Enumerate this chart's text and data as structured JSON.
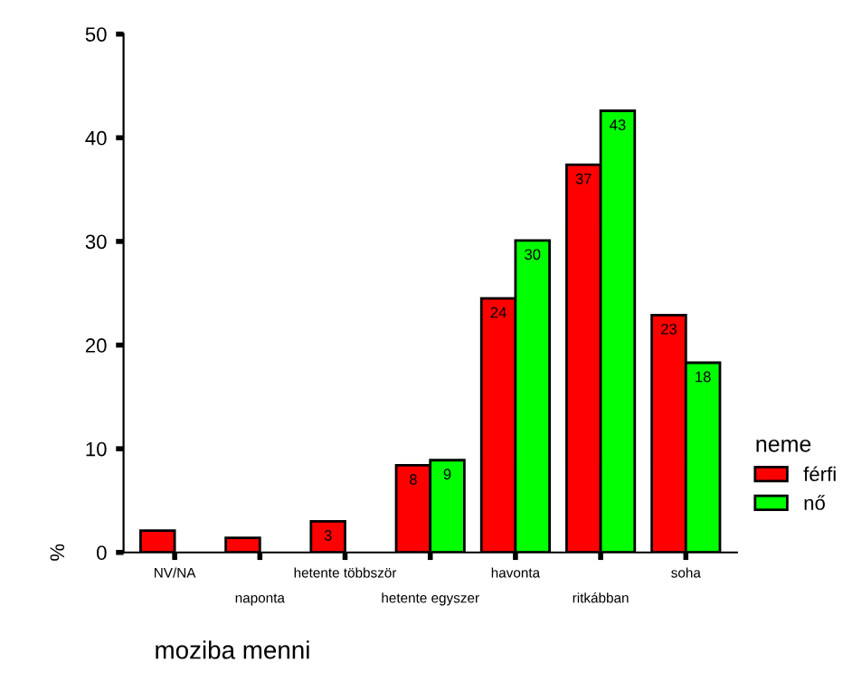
{
  "chart_data": {
    "type": "bar",
    "xlabel": "moziba menni",
    "ylabel": "%",
    "legend_title": "neme",
    "categories": [
      "NV/NA",
      "naponta",
      "hetente többször",
      "hetente egyszer",
      "havonta",
      "ritkábban",
      "soha"
    ],
    "series": [
      {
        "name": "férfi",
        "color": "#ff0000",
        "values": [
          2.1,
          1.4,
          3.0,
          8.4,
          24.5,
          37.4,
          22.9
        ],
        "value_labels": [
          null,
          null,
          "3",
          "8",
          "24",
          "37",
          "23"
        ]
      },
      {
        "name": "nő",
        "color": "#00ff00",
        "values": [
          null,
          null,
          null,
          8.9,
          30.1,
          42.6,
          18.3
        ],
        "value_labels": [
          null,
          null,
          null,
          "9",
          "30",
          "43",
          "18"
        ]
      }
    ],
    "ylim": [
      0,
      50
    ],
    "yticks": [
      0,
      10,
      20,
      30,
      40,
      50
    ],
    "grid": false,
    "legend": "right"
  }
}
